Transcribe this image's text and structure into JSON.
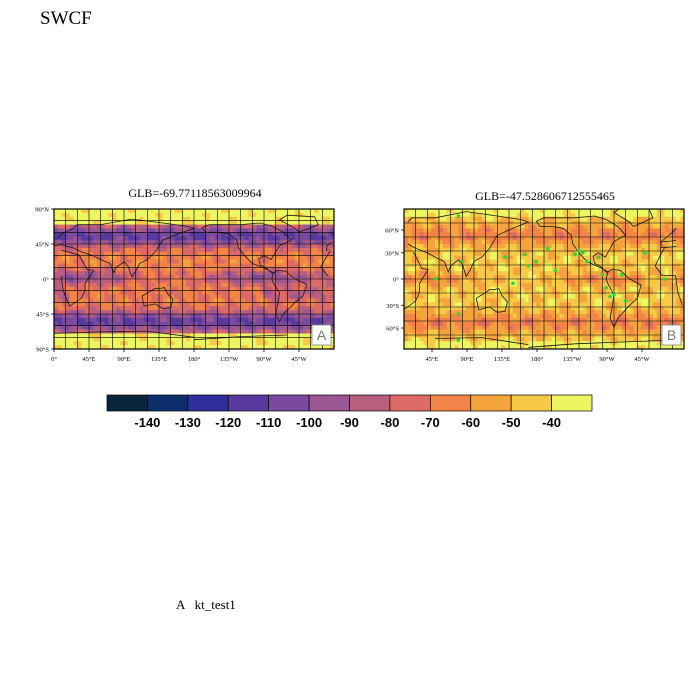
{
  "page_title": "SWCF",
  "colors": {
    "bins": [
      "#07253b",
      "#0c2f6b",
      "#2f2f9c",
      "#58399d",
      "#7b4a9e",
      "#9a5793",
      "#b85f7f",
      "#dc6b67",
      "#f28447",
      "#f5a33d",
      "#f6ca47",
      "#edf560"
    ]
  },
  "colorbar": {
    "labels": [
      "-140",
      "-130",
      "-120",
      "-110",
      "-100",
      "-90",
      "-80",
      "-70",
      "-60",
      "-50",
      "-40"
    ]
  },
  "panels": [
    {
      "id": "A",
      "title": "GLB=-69.77118563009964",
      "tag": "A",
      "lat_labels": [
        "90°N",
        "45°N",
        "0°",
        "45°S",
        "90°S"
      ],
      "lon_labels": [
        "0°",
        "45°E",
        "90°E",
        "135°E",
        "180°",
        "135°W",
        "90°W",
        "45°W"
      ]
    },
    {
      "id": "B",
      "title": "GLB=-47.528606712555465",
      "tag": "B",
      "lat_labels": [
        "60°N",
        "30°N",
        "0°",
        "30°S",
        "60°S"
      ],
      "lon_labels": [
        "45°E",
        "90°E",
        "135°E",
        "180°",
        "135°W",
        "90°W",
        "45°W"
      ]
    }
  ],
  "caption": {
    "letter": "A",
    "text": "kt_test1"
  }
}
